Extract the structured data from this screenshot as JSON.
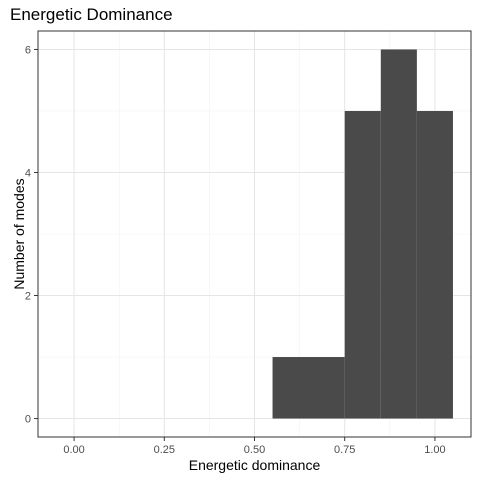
{
  "chart_data": {
    "type": "bar",
    "title": "Energetic Dominance",
    "xlabel": "Energetic dominance",
    "ylabel": "Number of modes",
    "xlim": [
      -0.1,
      1.1
    ],
    "ylim": [
      -0.3,
      6.3
    ],
    "x_ticks": [
      "0.00",
      "0.25",
      "0.50",
      "0.75",
      "1.00"
    ],
    "y_ticks": [
      "0",
      "2",
      "4",
      "6"
    ],
    "grid": true,
    "bins": [
      {
        "start": 0.55,
        "end": 0.75,
        "count": 1
      },
      {
        "start": 0.75,
        "end": 0.85,
        "count": 5
      },
      {
        "start": 0.85,
        "end": 0.95,
        "count": 6
      },
      {
        "start": 0.95,
        "end": 1.05,
        "count": 5
      }
    ],
    "bar_color": "#4a4a4a"
  }
}
